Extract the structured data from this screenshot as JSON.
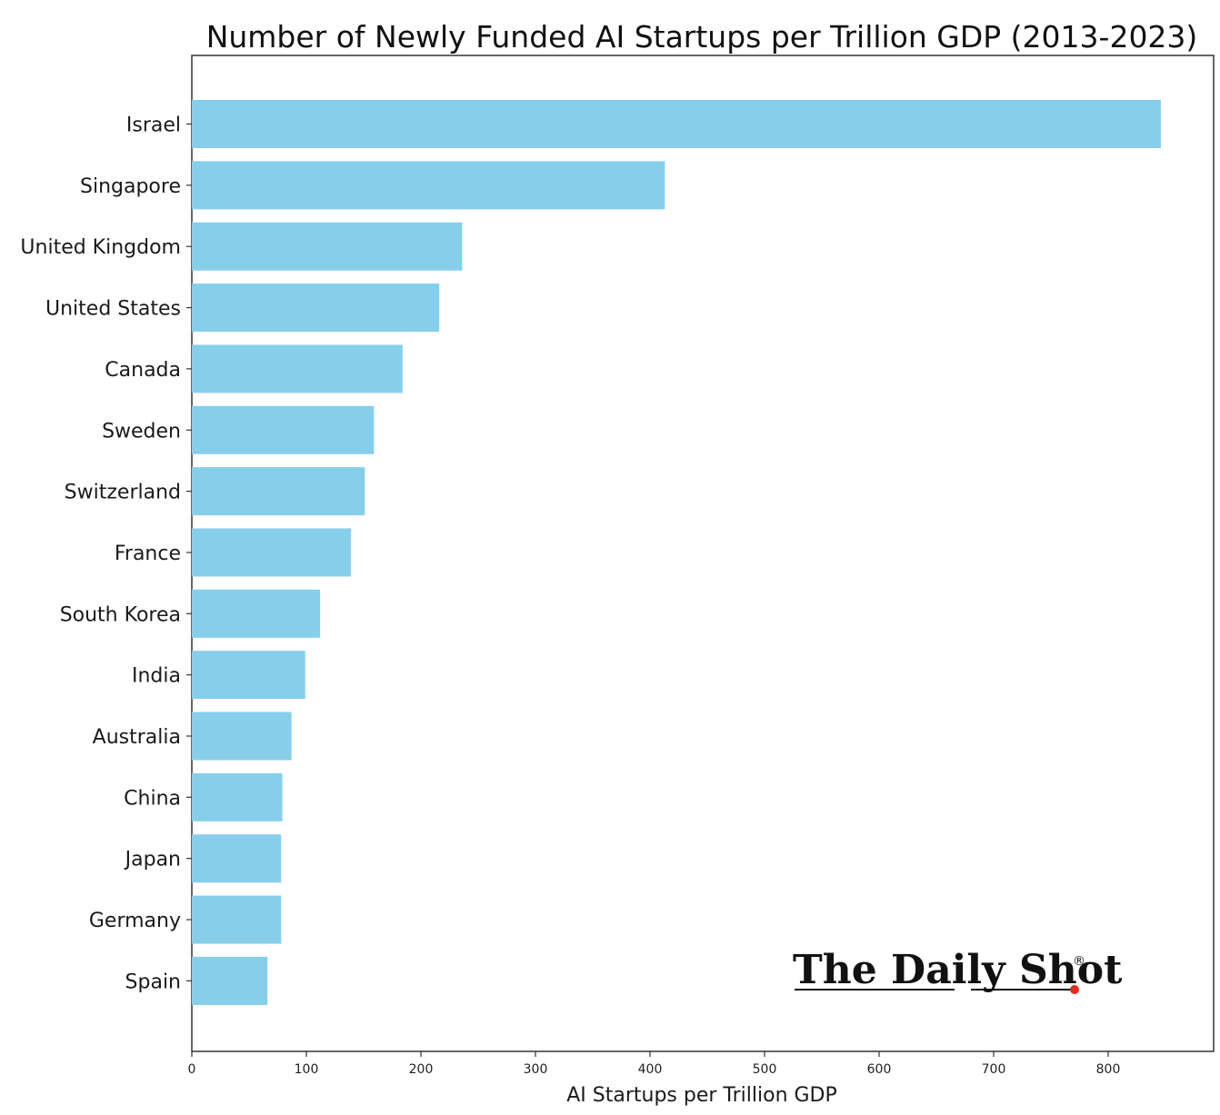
{
  "chart_data": {
    "type": "bar",
    "orientation": "horizontal",
    "title": "Number of Newly Funded AI Startups per Trillion GDP (2013-2023)",
    "xlabel": "AI Startups per Trillion GDP",
    "ylabel": "",
    "categories": [
      "Israel",
      "Singapore",
      "United Kingdom",
      "United States",
      "Canada",
      "Sweden",
      "Switzerland",
      "France",
      "South Korea",
      "India",
      "Australia",
      "China",
      "Japan",
      "Germany",
      "Spain"
    ],
    "values": [
      846,
      413,
      236,
      216,
      184,
      159,
      151,
      139,
      112,
      99,
      87,
      79,
      78,
      78,
      66
    ],
    "xlim": [
      0,
      890
    ],
    "xticks": [
      0,
      100,
      200,
      300,
      400,
      500,
      600,
      700,
      800
    ],
    "grid": false,
    "legend": "none",
    "bar_color": "#87ceeb"
  },
  "logo": {
    "text": "The Daily Shot",
    "mark": "®",
    "dot_color": "#e8291c"
  }
}
